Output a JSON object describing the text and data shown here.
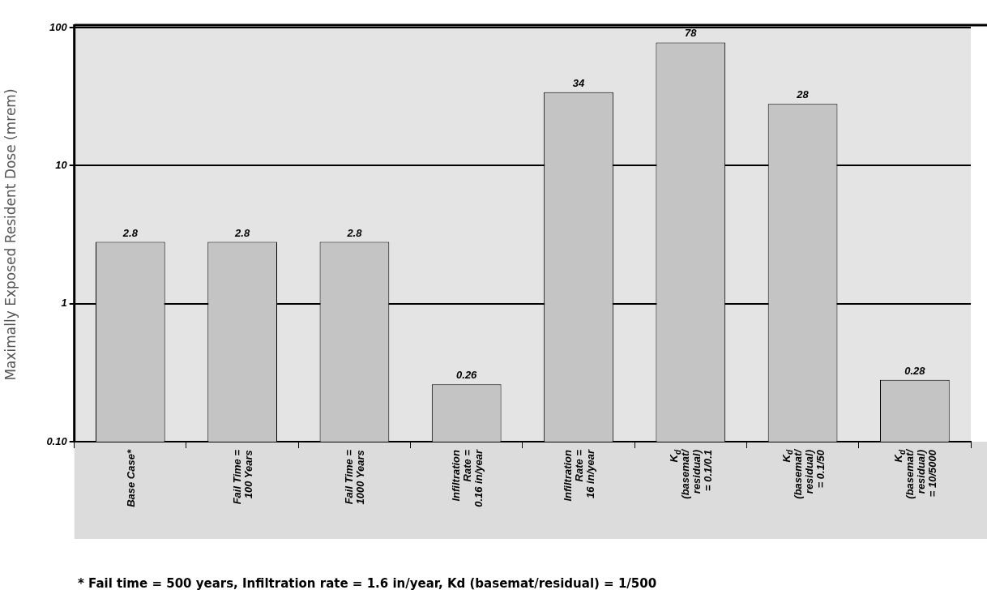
{
  "chart_data": {
    "type": "bar",
    "ylabel": "Maximally Exposed Resident Dose (mrem)",
    "categories": [
      "Base Case*",
      "Fail Time =\n100 Years",
      "Fail Time =\n1000 Years",
      "Infiltration\nRate =\n0.16 in/year",
      "Infiltration\nRate =\n16 in/year",
      "K$_{d}$\n(basemat/\nresidual)\n= 0.1/0.1",
      "K$_{d}$\n(basemat/\nresidual)\n= 0.1/50",
      "K$_{d}$\n(basemat/\nresidual)\n= 10/5000"
    ],
    "values": [
      2.8,
      2.8,
      2.8,
      0.26,
      34,
      78,
      28,
      0.28
    ],
    "color": "#c4c4c4",
    "log": true,
    "ylim": [
      0.1,
      100
    ],
    "yticks": [
      {
        "value": 0.1,
        "label": "0.10"
      },
      1,
      10,
      100
    ],
    "grid": "y",
    "data_labels": true,
    "annotations": [
      "* Fail time = 500 years, Infiltration rate = 1.6 in/year, Kd (basemat/residual) = 1/500"
    ]
  }
}
